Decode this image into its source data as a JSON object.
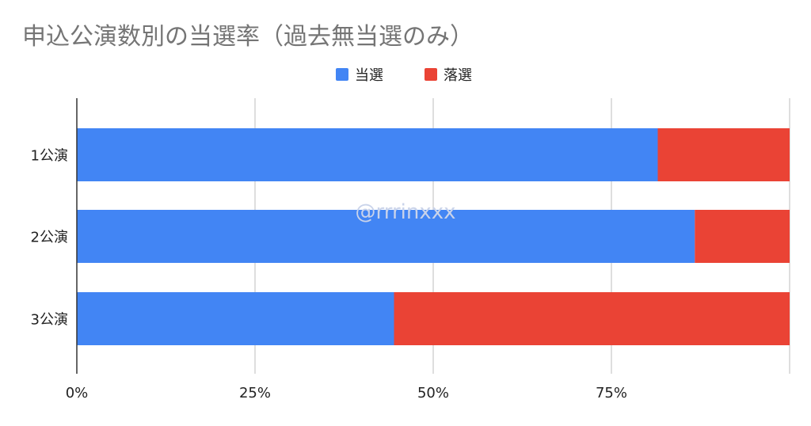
{
  "chart_data": {
    "type": "bar",
    "orientation": "horizontal",
    "stacked": "percent",
    "title": "申込公演数別の当選率（過去無当選のみ）",
    "categories": [
      "1公演",
      "2公演",
      "3公演"
    ],
    "series": [
      {
        "name": "当選",
        "color": "#4285f4",
        "values": [
          81.5,
          86.7,
          44.5
        ]
      },
      {
        "name": "落選",
        "color": "#ea4335",
        "values": [
          18.5,
          13.3,
          55.5
        ]
      }
    ],
    "x_ticks": [
      "0%",
      "25%",
      "50%",
      "75%"
    ],
    "xlim": [
      0,
      100
    ],
    "grid": true,
    "legend_position": "top",
    "watermark": "@rrrinxxx"
  }
}
